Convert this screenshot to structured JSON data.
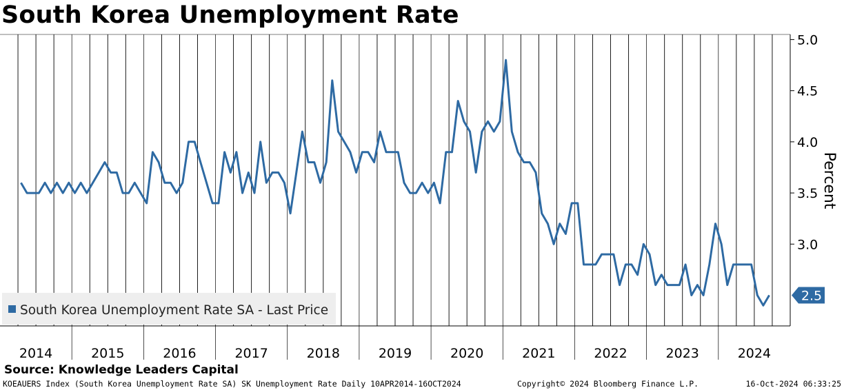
{
  "title": "South Korea Unemployment Rate",
  "source": "Source: Knowledge Leaders Capital",
  "footer": {
    "left": "KOEAUERS Index (South Korea Unemployment Rate SA) SK Unemployment Rate  Daily 10APR2014-16OCT2024",
    "center": "Copyright© 2024 Bloomberg Finance L.P.",
    "right": "16-Oct-2024 06:33:25"
  },
  "colors": {
    "line": "#2e6aa3",
    "grid": "#000000",
    "legend_bg": "#eeeeee",
    "badge": "#2e6aa3"
  },
  "chart_data": {
    "type": "line",
    "title": "South Korea Unemployment Rate",
    "ylabel": "Percent",
    "xlim": [
      "2014-01",
      "2024-12"
    ],
    "ylim": [
      2.2,
      5.05
    ],
    "y_ticks": [
      "5.0",
      "4.5",
      "4.0",
      "3.5",
      "3.0"
    ],
    "y_tick_values": [
      5.0,
      4.5,
      4.0,
      3.5,
      3.0
    ],
    "x_tick_labels": [
      "2014",
      "2015",
      "2016",
      "2017",
      "2018",
      "2019",
      "2020",
      "2021",
      "2022",
      "2023",
      "2024"
    ],
    "grid": true,
    "legend": {
      "position": "bottom-left",
      "entries": [
        "South Korea Unemployment Rate SA - Last Price"
      ]
    },
    "last_value_label": "2.5",
    "series": [
      {
        "name": "South Korea Unemployment Rate SA - Last Price",
        "x": [
          "2014-04",
          "2014-05",
          "2014-06",
          "2014-07",
          "2014-08",
          "2014-09",
          "2014-10",
          "2014-11",
          "2014-12",
          "2015-01",
          "2015-02",
          "2015-03",
          "2015-04",
          "2015-05",
          "2015-06",
          "2015-07",
          "2015-08",
          "2015-09",
          "2015-10",
          "2015-11",
          "2015-12",
          "2016-01",
          "2016-02",
          "2016-03",
          "2016-04",
          "2016-05",
          "2016-06",
          "2016-07",
          "2016-08",
          "2016-09",
          "2016-10",
          "2016-11",
          "2016-12",
          "2017-01",
          "2017-02",
          "2017-03",
          "2017-04",
          "2017-05",
          "2017-06",
          "2017-07",
          "2017-08",
          "2017-09",
          "2017-10",
          "2017-11",
          "2017-12",
          "2018-01",
          "2018-02",
          "2018-03",
          "2018-04",
          "2018-05",
          "2018-06",
          "2018-07",
          "2018-08",
          "2018-09",
          "2018-10",
          "2018-11",
          "2018-12",
          "2019-01",
          "2019-02",
          "2019-03",
          "2019-04",
          "2019-05",
          "2019-06",
          "2019-07",
          "2019-08",
          "2019-09",
          "2019-10",
          "2019-11",
          "2019-12",
          "2020-01",
          "2020-02",
          "2020-03",
          "2020-04",
          "2020-05",
          "2020-06",
          "2020-07",
          "2020-08",
          "2020-09",
          "2020-10",
          "2020-11",
          "2020-12",
          "2021-01",
          "2021-02",
          "2021-03",
          "2021-04",
          "2021-05",
          "2021-06",
          "2021-07",
          "2021-08",
          "2021-09",
          "2021-10",
          "2021-11",
          "2021-12",
          "2022-01",
          "2022-02",
          "2022-03",
          "2022-04",
          "2022-05",
          "2022-06",
          "2022-07",
          "2022-08",
          "2022-09",
          "2022-10",
          "2022-11",
          "2022-12",
          "2023-01",
          "2023-02",
          "2023-03",
          "2023-04",
          "2023-05",
          "2023-06",
          "2023-07",
          "2023-08",
          "2023-09",
          "2023-10",
          "2023-11",
          "2023-12",
          "2024-01",
          "2024-02",
          "2024-03",
          "2024-04",
          "2024-05",
          "2024-06",
          "2024-07",
          "2024-08",
          "2024-09"
        ],
        "values": [
          3.6,
          3.5,
          3.5,
          3.5,
          3.6,
          3.5,
          3.6,
          3.5,
          3.6,
          3.5,
          3.6,
          3.5,
          3.6,
          3.7,
          3.8,
          3.7,
          3.7,
          3.5,
          3.5,
          3.6,
          3.5,
          3.4,
          3.9,
          3.8,
          3.6,
          3.6,
          3.5,
          3.6,
          4.0,
          4.0,
          3.8,
          3.6,
          3.4,
          3.4,
          3.9,
          3.7,
          3.9,
          3.5,
          3.7,
          3.5,
          4.0,
          3.6,
          3.7,
          3.7,
          3.6,
          3.3,
          3.7,
          4.1,
          3.8,
          3.8,
          3.6,
          3.8,
          4.6,
          4.1,
          4.0,
          3.9,
          3.7,
          3.9,
          3.9,
          3.8,
          4.1,
          3.9,
          3.9,
          3.9,
          3.6,
          3.5,
          3.5,
          3.6,
          3.5,
          3.6,
          3.4,
          3.9,
          3.9,
          4.4,
          4.2,
          4.1,
          3.7,
          4.1,
          4.2,
          4.1,
          4.2,
          4.8,
          4.1,
          3.9,
          3.8,
          3.8,
          3.7,
          3.3,
          3.2,
          3.0,
          3.2,
          3.1,
          3.4,
          3.4,
          2.8,
          2.8,
          2.8,
          2.9,
          2.9,
          2.9,
          2.6,
          2.8,
          2.8,
          2.7,
          3.0,
          2.9,
          2.6,
          2.7,
          2.6,
          2.6,
          2.6,
          2.8,
          2.5,
          2.6,
          2.5,
          2.8,
          3.2,
          3.0,
          2.6,
          2.8,
          2.8,
          2.8,
          2.8,
          2.5,
          2.4,
          2.5
        ]
      }
    ]
  }
}
